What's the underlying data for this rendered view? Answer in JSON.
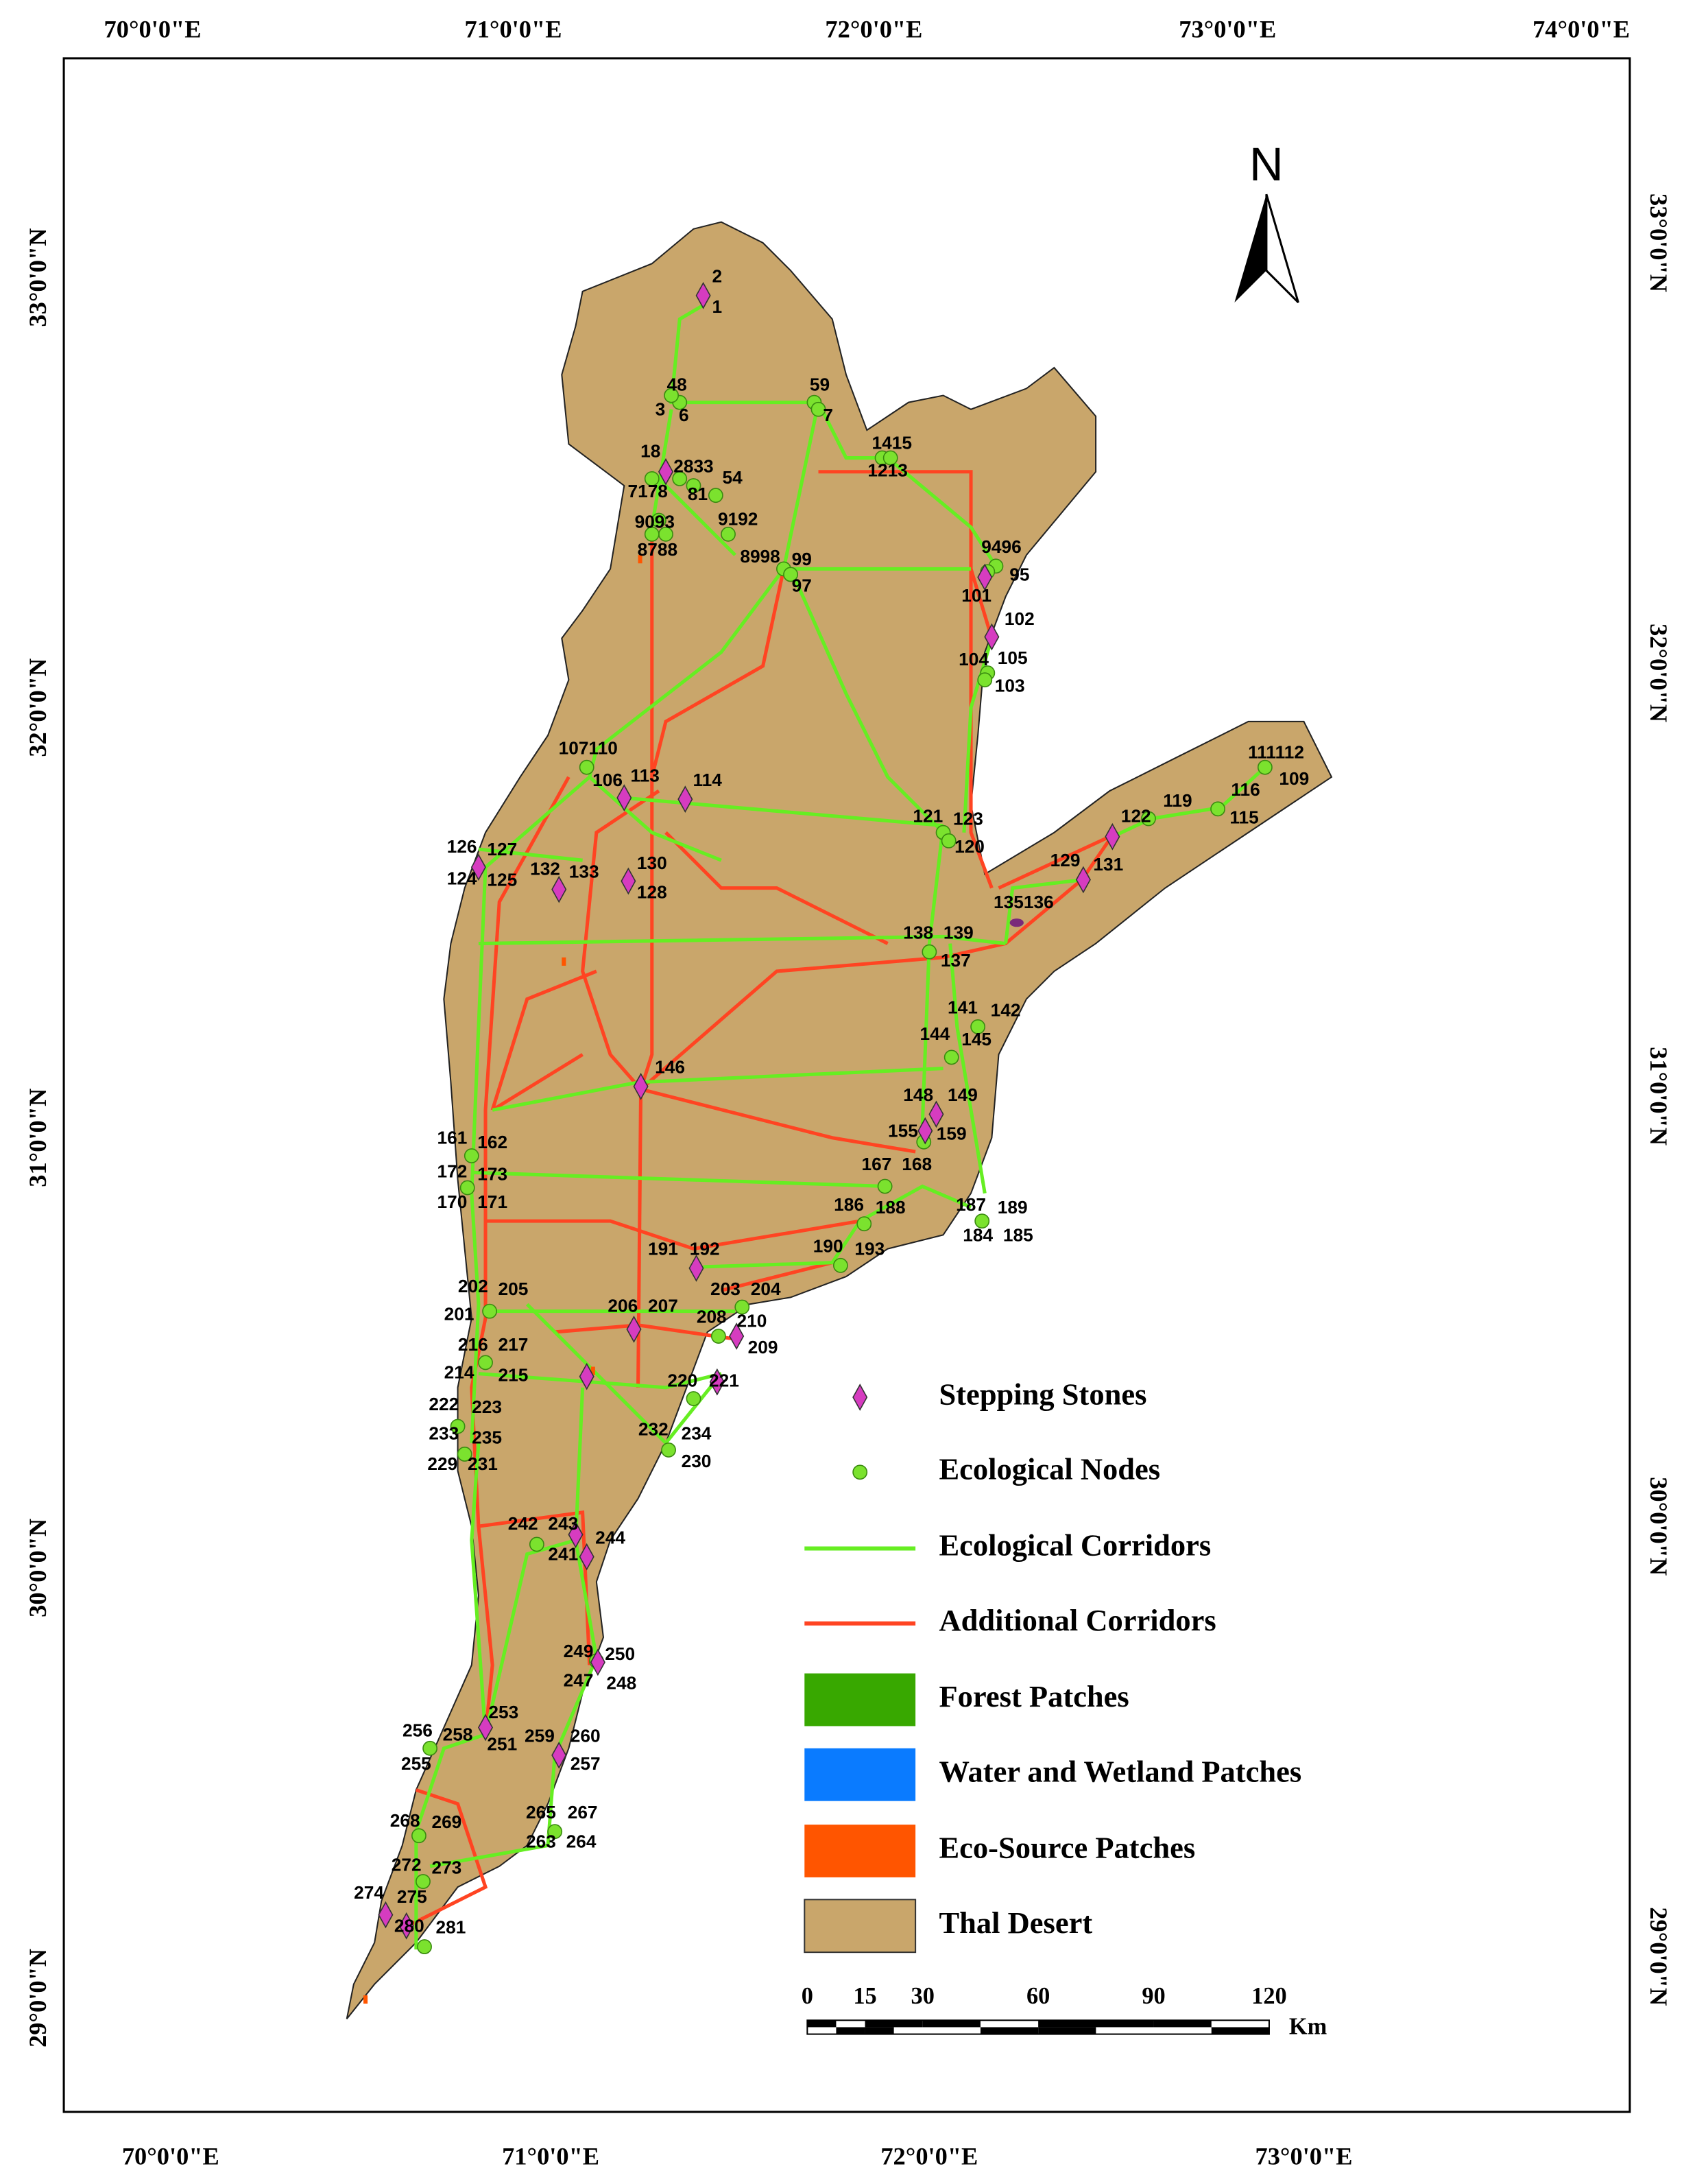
{
  "map": {
    "graticule": {
      "top": [
        "70°0'0\"E",
        "71°0'0\"E",
        "72°0'0\"E",
        "73°0'0\"E",
        "74°0'0\"E"
      ],
      "bottom": [
        "70°0'0\"E",
        "71°0'0\"E",
        "72°0'0\"E",
        "73°0'0\"E"
      ],
      "left": [
        "33°0'0\"N",
        "32°0'0\"N",
        "31°0'0\"N",
        "30°0'0\"N",
        "29°0'0\"N"
      ],
      "right": [
        "33°0'0\"N",
        "32°0'0\"N",
        "31°0'0\"N",
        "30°0'0\"N",
        "29°0'0\"N"
      ]
    },
    "north": "N",
    "legend": [
      {
        "label": "Stepping Stones",
        "symbol": "diamond",
        "color": "#d63cc0"
      },
      {
        "label": "Ecological Nodes",
        "symbol": "circle",
        "color": "#7be22e"
      },
      {
        "label": "Ecological Corridors",
        "symbol": "line",
        "color": "#66ee22"
      },
      {
        "label": "Additional Corridors",
        "symbol": "line",
        "color": "#ff4422"
      },
      {
        "label": "Forest Patches",
        "symbol": "patch",
        "color": "#38a800"
      },
      {
        "label": "Water and Wetland Patches",
        "symbol": "patch",
        "color": "#0a7bff"
      },
      {
        "label": "Eco-Source Patches",
        "symbol": "patch",
        "color": "#ff5500"
      },
      {
        "label": "Thal Desert",
        "symbol": "patch",
        "color": "#c9a66b"
      }
    ],
    "scale_bar": {
      "ticks": [
        0,
        15,
        30,
        60,
        90,
        120
      ],
      "unit": "Km"
    },
    "labels": [
      "2",
      "1",
      "48",
      "3",
      "6",
      "59",
      "7",
      "1415",
      "1213",
      "18",
      "2833",
      "54",
      "7178",
      "81",
      "9093",
      "9192",
      "8788",
      "8998",
      "99",
      "97",
      "9496",
      "95",
      "101",
      "102",
      "104",
      "105",
      "103",
      "107110",
      "106",
      "113",
      "114",
      "111112",
      "109",
      "116",
      "115",
      "119",
      "122",
      "121",
      "123",
      "120",
      "129",
      "131",
      "126",
      "127",
      "124",
      "125",
      "132",
      "133",
      "130",
      "128",
      "135136",
      "138",
      "139",
      "137",
      "141",
      "142",
      "144",
      "145",
      "146",
      "148",
      "149",
      "155",
      "159",
      "161",
      "162",
      "167",
      "168",
      "172",
      "173",
      "170",
      "171",
      "187",
      "189",
      "186",
      "188",
      "184",
      "185",
      "191",
      "192",
      "190",
      "193",
      "202",
      "205",
      "203",
      "204",
      "201",
      "206",
      "207",
      "208",
      "210",
      "209",
      "216",
      "217",
      "214",
      "215",
      "220",
      "221",
      "222",
      "223",
      "232",
      "234",
      "233",
      "235",
      "229",
      "231",
      "230",
      "242",
      "243",
      "244",
      "241",
      "249",
      "250",
      "247",
      "248",
      "256",
      "258",
      "253",
      "259",
      "260",
      "255",
      "251",
      "257",
      "265",
      "267",
      "263",
      "264",
      "268",
      "269",
      "272",
      "273",
      "274",
      "275",
      "280",
      "281"
    ]
  }
}
